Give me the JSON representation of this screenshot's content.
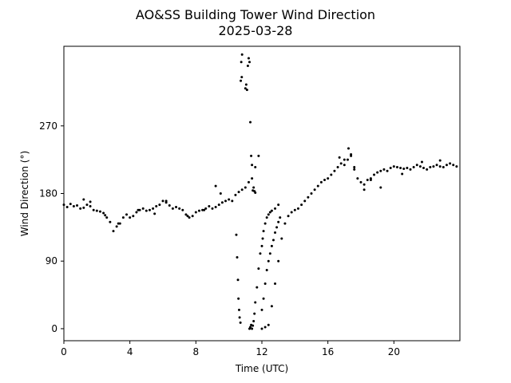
{
  "chart_data": {
    "type": "scatter",
    "title": "AO&SS Building Tower Wind Direction",
    "subtitle": "2025-03-28",
    "xlabel": "Time (UTC)",
    "ylabel": "Wind Direction (°)",
    "xlim": [
      0,
      24
    ],
    "ylim": [
      -16,
      376
    ],
    "xticks": [
      0,
      4,
      8,
      12,
      16,
      20
    ],
    "xtick_labels": [
      "0",
      "4",
      "8",
      "12",
      "16",
      "20"
    ],
    "yticks": [
      0,
      90,
      180,
      270
    ],
    "ytick_labels": [
      "0",
      "90",
      "180",
      "270"
    ],
    "grid": false,
    "marker_color": "#000000",
    "series": [
      {
        "x": [
          0.0,
          0.2,
          0.4,
          0.6,
          0.8,
          1.0,
          1.2,
          1.4,
          1.6,
          1.8,
          2.0,
          2.2,
          2.4,
          2.6,
          2.8,
          3.0,
          3.2,
          3.4,
          3.6,
          3.8,
          4.0,
          4.2,
          4.4,
          4.6,
          4.8,
          5.0,
          5.2,
          5.4,
          5.6,
          5.8,
          6.0,
          6.2,
          6.4,
          6.6,
          6.8,
          7.0,
          7.2,
          7.4,
          7.6,
          7.8,
          8.0,
          8.2,
          8.4,
          8.6,
          8.8,
          9.0,
          9.2,
          9.4,
          9.6,
          9.8,
          10.0,
          10.2,
          10.4,
          10.6,
          10.8,
          11.0,
          11.2,
          11.4,
          11.6,
          11.8,
          12.0,
          12.2,
          12.4,
          12.6,
          12.8,
          13.0,
          13.2,
          13.4,
          13.6,
          13.8,
          14.0,
          14.2,
          14.4,
          14.6,
          14.8,
          15.0,
          15.2,
          15.4,
          15.6,
          15.8,
          16.0,
          16.2,
          16.4,
          16.6,
          16.8,
          17.0,
          17.2,
          17.4,
          17.6,
          17.8,
          18.0,
          18.2,
          18.4,
          18.6,
          18.8,
          19.0,
          19.2,
          19.4,
          19.6,
          19.8,
          20.0,
          20.2,
          20.4,
          20.6,
          20.8,
          21.0,
          21.2,
          21.4,
          21.6,
          21.8,
          22.0,
          22.2,
          22.4,
          22.6,
          22.8,
          23.0,
          23.2,
          23.4,
          23.6,
          23.8,
          1.2,
          1.6,
          2.5,
          3.3,
          4.5,
          5.5,
          6.2,
          7.5,
          8.5,
          9.2,
          9.5,
          10.45,
          10.5,
          10.55,
          10.58,
          10.62,
          10.65,
          10.7,
          10.72,
          10.75,
          10.78,
          10.8,
          11.0,
          11.05,
          11.1,
          11.15,
          11.2,
          11.25,
          11.3,
          11.35,
          11.4,
          11.45,
          11.5,
          11.55,
          11.6,
          11.25,
          11.3,
          11.35,
          11.4,
          11.45,
          11.5,
          11.55,
          11.6,
          11.7,
          11.8,
          11.9,
          12.0,
          12.05,
          12.1,
          12.2,
          12.3,
          12.4,
          12.5,
          12.6,
          12.8,
          13.0,
          12.0,
          12.1,
          12.2,
          12.3,
          12.4,
          12.5,
          12.6,
          12.7,
          12.8,
          12.9,
          13.0,
          13.1,
          16.7,
          17.0,
          17.25,
          17.4,
          17.6,
          18.2,
          18.6,
          19.2,
          20.5,
          21.7,
          22.8
        ],
        "y": [
          165,
          162,
          166,
          163,
          164,
          160,
          161,
          165,
          163,
          158,
          157,
          156,
          154,
          148,
          142,
          130,
          136,
          140,
          148,
          152,
          148,
          150,
          155,
          158,
          160,
          157,
          158,
          160,
          163,
          165,
          170,
          168,
          164,
          160,
          162,
          160,
          158,
          152,
          148,
          150,
          155,
          157,
          158,
          160,
          163,
          160,
          162,
          165,
          168,
          170,
          172,
          170,
          178,
          182,
          185,
          188,
          195,
          200,
          215,
          230,
          0,
          2,
          5,
          30,
          60,
          90,
          120,
          140,
          150,
          155,
          158,
          160,
          165,
          170,
          175,
          180,
          185,
          190,
          195,
          198,
          200,
          205,
          210,
          215,
          220,
          218,
          225,
          232,
          215,
          200,
          195,
          192,
          198,
          200,
          205,
          208,
          210,
          212,
          210,
          214,
          216,
          215,
          214,
          213,
          214,
          212,
          215,
          218,
          216,
          214,
          212,
          215,
          216,
          218,
          216,
          215,
          218,
          220,
          218,
          216,
          172,
          169,
          151,
          140,
          158,
          153,
          170,
          150,
          158,
          190,
          180,
          125,
          95,
          65,
          40,
          25,
          15,
          8,
          330,
          355,
          335,
          365,
          320,
          325,
          318,
          350,
          360,
          355,
          275,
          230,
          218,
          184,
          188,
          183,
          181,
          0,
          2,
          5,
          0,
          4,
          10,
          20,
          35,
          55,
          80,
          100,
          110,
          120,
          130,
          140,
          148,
          152,
          155,
          157,
          160,
          165,
          25,
          40,
          60,
          78,
          90,
          100,
          110,
          118,
          128,
          135,
          142,
          148,
          228,
          225,
          240,
          230,
          212,
          185,
          198,
          188,
          206,
          222,
          224
        ]
      }
    ]
  }
}
